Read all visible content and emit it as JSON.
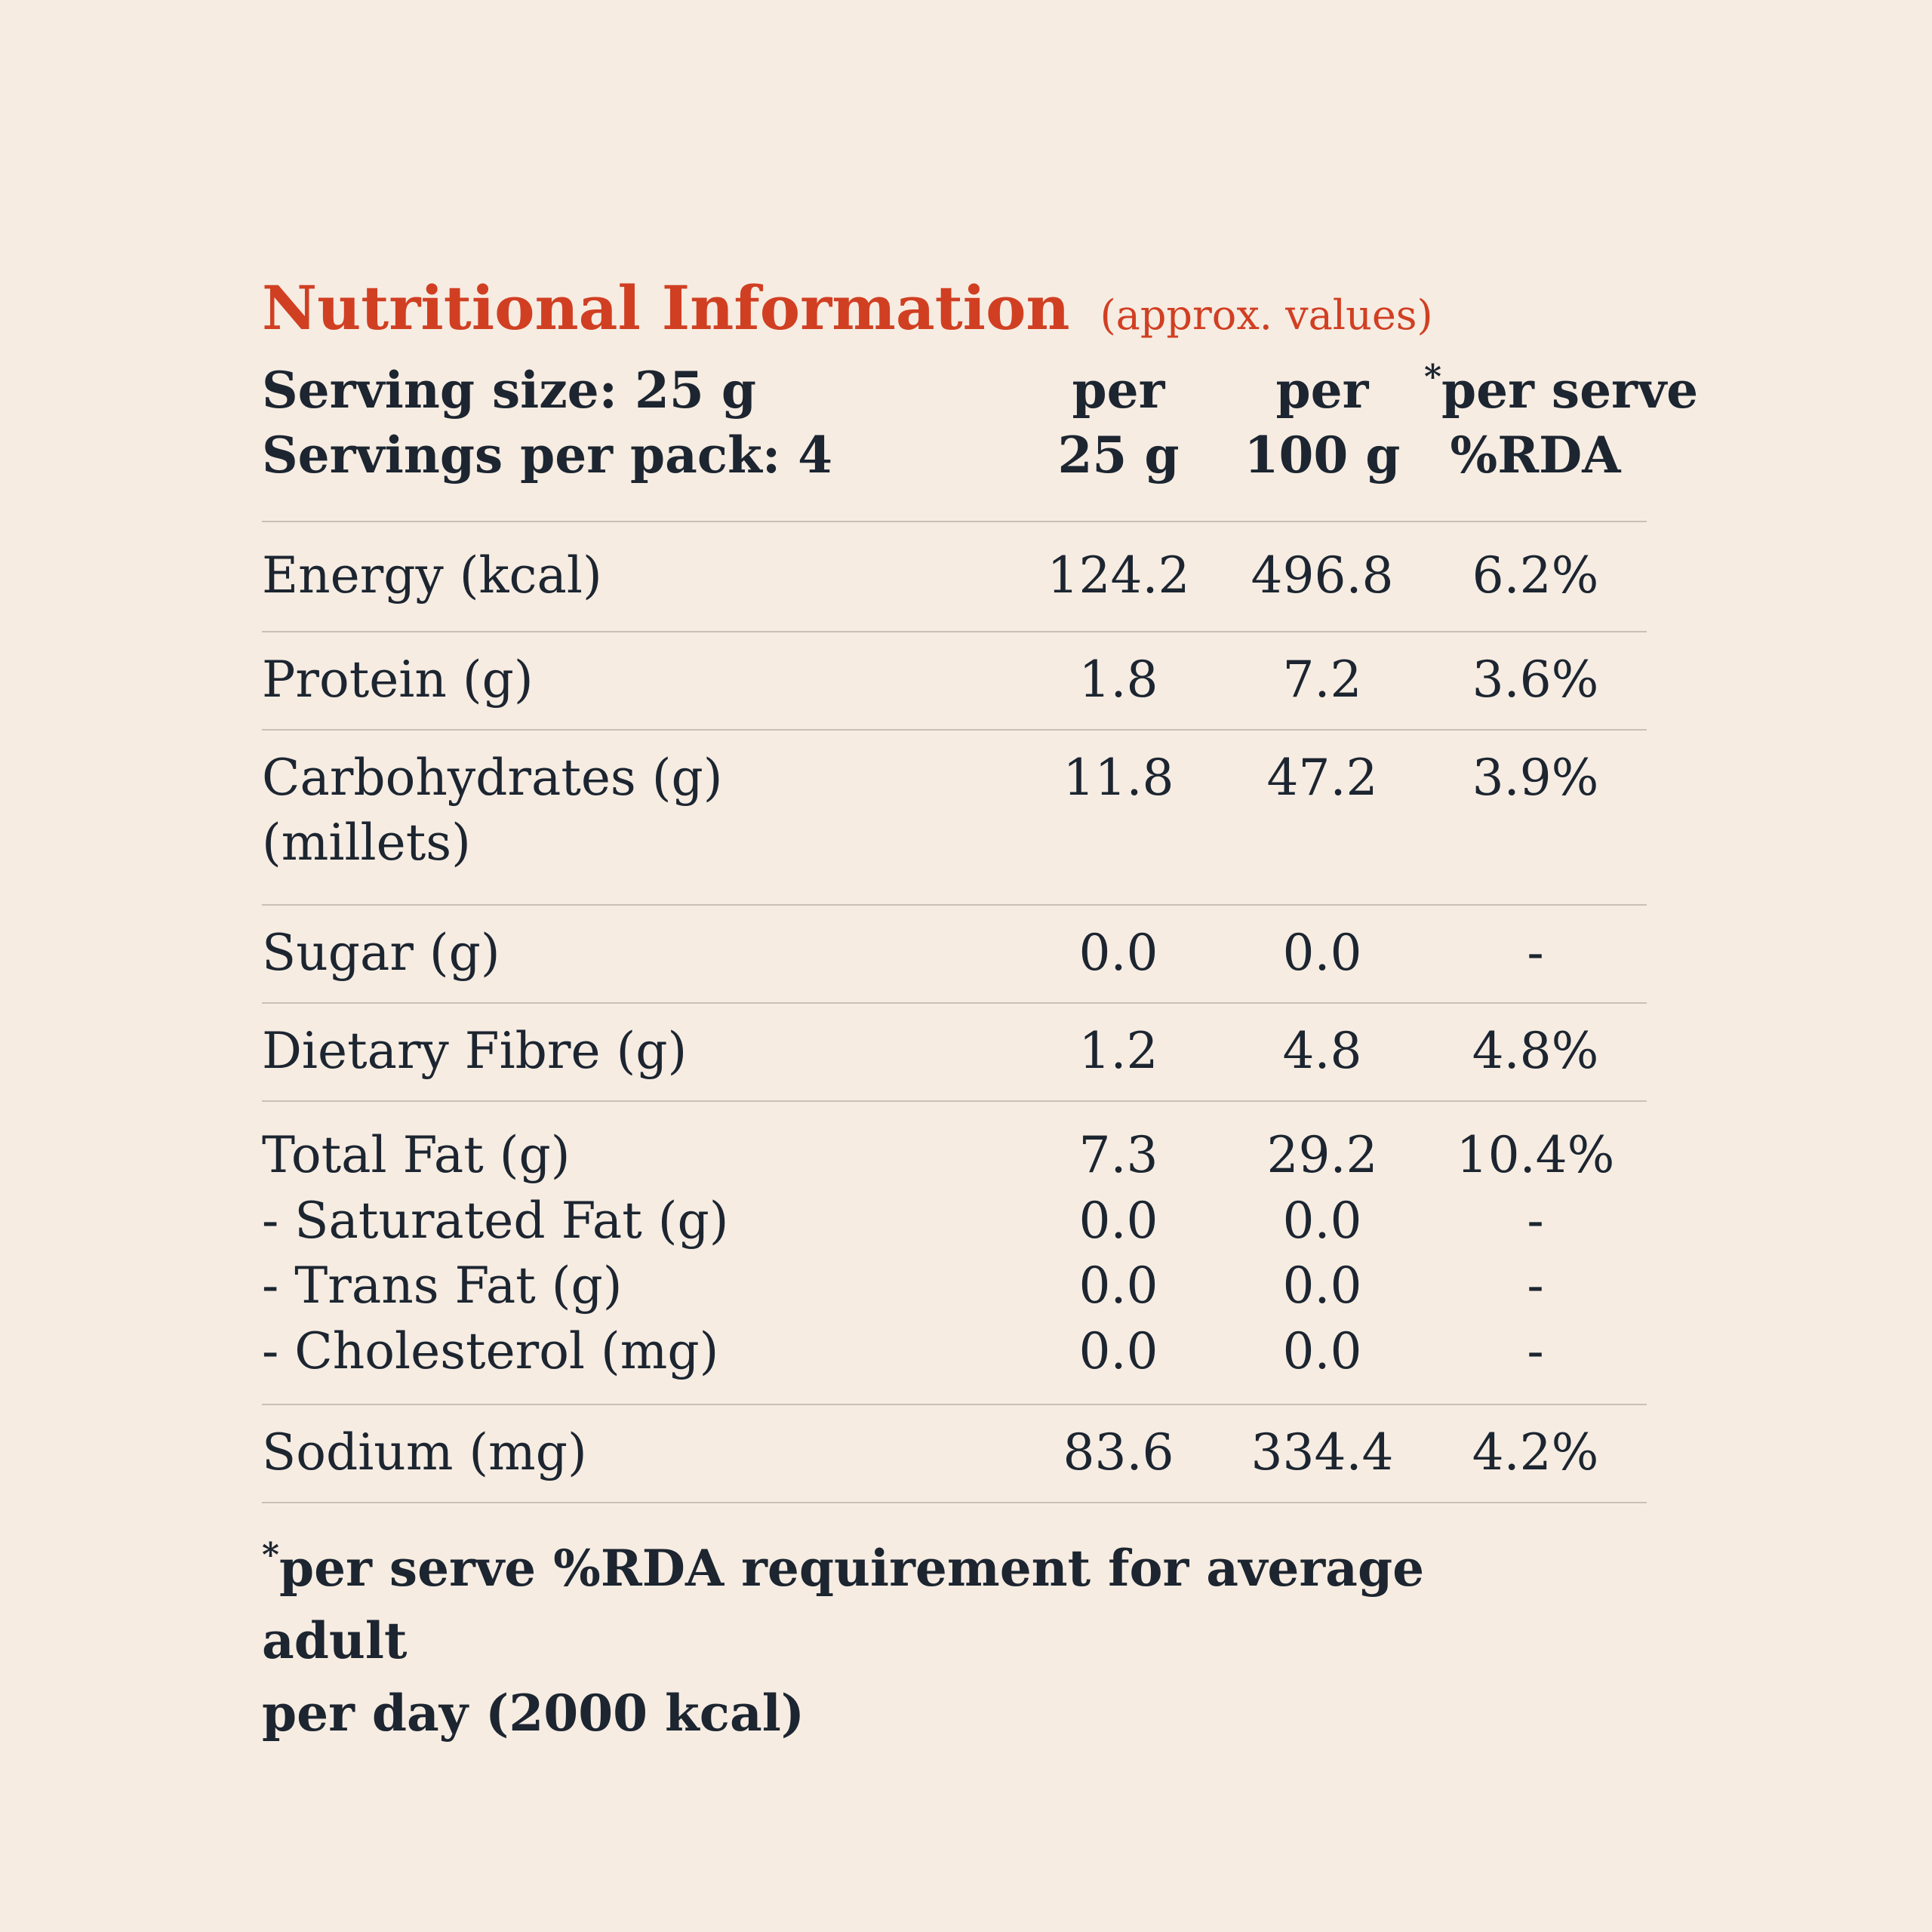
{
  "title": "Nutritional Information",
  "subtitle": "(approx. values)",
  "serving_size": "Serving size: 25 g",
  "servings_per_pack": "Servings per pack: 4",
  "columns": [
    {
      "line1": "per",
      "line2": "25 g"
    },
    {
      "line1": "per",
      "line2": "100 g"
    },
    {
      "asterisk": "*",
      "line1": "per serve",
      "line2": "%RDA"
    }
  ],
  "rows": [
    {
      "label": "Energy (kcal)",
      "per_serving": "124.2",
      "per_100g": "496.8",
      "rda": "6.2%"
    },
    {
      "label": "Protein (g)",
      "per_serving": "1.8",
      "per_100g": "7.2",
      "rda": "3.6%"
    },
    {
      "label": "Carbohydrates (g)",
      "sublabel": "(millets)",
      "per_serving": "11.8",
      "per_100g": "47.2",
      "rda": "3.9%"
    },
    {
      "label": "Sugar (g)",
      "per_serving": "0.0",
      "per_100g": "0.0",
      "rda": "-"
    },
    {
      "label": "Dietary Fibre (g)",
      "per_serving": "1.2",
      "per_100g": "4.8",
      "rda": "4.8%"
    },
    {
      "label": "Total Fat (g)",
      "per_serving": "7.3",
      "per_100g": "29.2",
      "rda": "10.4%",
      "sub_rows": [
        {
          "label": "- Saturated Fat (g)",
          "per_serving": "0.0",
          "per_100g": "0.0",
          "rda": "-"
        },
        {
          "label": "- Trans Fat (g)",
          "per_serving": "0.0",
          "per_100g": "0.0",
          "rda": "-"
        },
        {
          "label": "- Cholesterol (mg)",
          "per_serving": "0.0",
          "per_100g": "0.0",
          "rda": "-"
        }
      ]
    },
    {
      "label": "Sodium (mg)",
      "per_serving": "83.6",
      "per_100g": "334.4",
      "rda": "4.2%"
    }
  ],
  "footnote_asterisk": "*",
  "footnote_line1": "per serve %RDA requirement for average adult",
  "footnote_line2": "per day (2000 kcal)",
  "colors": {
    "background": "#f6ece2",
    "title": "#d13f22",
    "text": "#1c2530",
    "divider": "#c9c0b6"
  }
}
